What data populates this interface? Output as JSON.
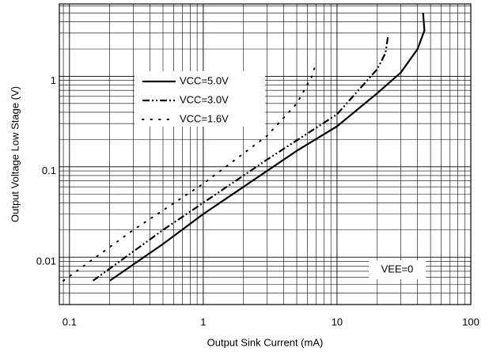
{
  "chart_data": {
    "type": "line",
    "xlabel": "Output Sink Current (mA)",
    "ylabel": "Output Voltage Low Stage (V)",
    "xscale": "log",
    "yscale": "log",
    "grid": true,
    "xlim": [
      0.084,
      100
    ],
    "xticks": [
      0.1,
      1,
      10,
      100
    ],
    "ylim": [
      0.003,
      6.3
    ],
    "yticks": [
      0.01,
      0.1,
      1
    ],
    "annotation": "VEE=0",
    "series": [
      {
        "name": "VCC=5.0V",
        "color": "#000000",
        "style": "solid",
        "x": [
          0.2,
          0.5,
          1,
          2,
          5,
          10,
          20,
          30,
          40,
          45,
          44
        ],
        "values": [
          0.0055,
          0.014,
          0.03,
          0.06,
          0.15,
          0.28,
          0.65,
          1.1,
          2,
          3.2,
          5
        ]
      },
      {
        "name": "VCC=3.0V",
        "color": "#000000",
        "style": "dashdot",
        "x": [
          0.15,
          0.5,
          1,
          3,
          10,
          20,
          23,
          24
        ],
        "values": [
          0.0055,
          0.02,
          0.04,
          0.12,
          0.38,
          1.2,
          1.8,
          2.7
        ]
      },
      {
        "name": "VCC=1.6V",
        "color": "#000000",
        "style": "dotted",
        "x": [
          0.09,
          0.3,
          1,
          3,
          5,
          6.5,
          7
        ],
        "values": [
          0.0055,
          0.02,
          0.065,
          0.22,
          0.5,
          1,
          1.45
        ]
      }
    ]
  }
}
